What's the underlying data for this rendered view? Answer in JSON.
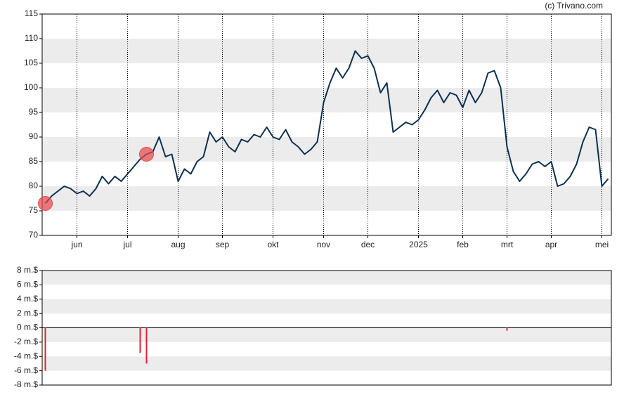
{
  "credit": "(c) Trivano.com",
  "chart_data": [
    {
      "type": "line",
      "categories": [
        null,
        null,
        null,
        null,
        null,
        "jun",
        null,
        null,
        null,
        null,
        null,
        null,
        null,
        "jul",
        null,
        null,
        null,
        null,
        null,
        null,
        null,
        "aug",
        null,
        null,
        null,
        null,
        null,
        null,
        "sep",
        null,
        null,
        null,
        null,
        null,
        null,
        null,
        "okt",
        null,
        null,
        null,
        null,
        null,
        null,
        null,
        "nov",
        null,
        null,
        null,
        null,
        null,
        null,
        "dec",
        null,
        null,
        null,
        null,
        null,
        null,
        null,
        "2025",
        null,
        null,
        null,
        null,
        null,
        null,
        "feb",
        null,
        null,
        null,
        null,
        null,
        null,
        "mrt",
        null,
        null,
        null,
        null,
        null,
        null,
        "apr",
        null,
        null,
        null,
        null,
        null,
        null,
        null,
        "mei",
        null
      ],
      "series": [
        {
          "color": "#0d3050",
          "values": [
            76.5,
            78,
            79,
            80,
            79.5,
            78.5,
            79,
            78,
            79.5,
            82,
            80.5,
            82,
            81,
            82.5,
            84,
            85.5,
            86.5,
            87,
            90,
            86,
            86.5,
            81,
            83.5,
            82.5,
            85,
            86,
            91,
            89,
            90,
            88,
            87,
            89.5,
            89,
            90.5,
            90,
            92,
            90,
            89.5,
            91.5,
            89,
            88,
            86.5,
            87.5,
            89,
            97,
            101,
            104,
            102,
            104,
            107.5,
            106,
            106.5,
            104,
            99,
            101,
            91,
            92,
            93,
            92.5,
            93.5,
            95.5,
            98,
            99.5,
            97,
            99,
            98.5,
            96,
            99.5,
            97,
            99,
            103,
            103.5,
            100,
            88,
            83,
            81,
            82.5,
            84.5,
            85,
            84,
            85,
            80,
            80.5,
            82,
            84.5,
            89,
            92,
            91.5,
            80,
            81.5
          ]
        },
        {
          "color": "#e8464a",
          "style": "marker",
          "values": [
            76.5,
            null,
            null,
            null,
            null,
            null,
            null,
            null,
            null,
            null,
            null,
            null,
            null,
            null,
            null,
            null,
            86.5,
            null,
            null,
            null,
            null,
            null,
            null,
            null,
            null,
            null,
            null,
            null,
            null,
            null,
            null,
            null,
            null,
            null,
            null,
            null,
            null,
            null,
            null,
            null,
            null,
            null,
            null,
            null,
            null,
            null,
            null,
            null,
            null,
            null,
            null,
            null,
            null,
            null,
            null,
            null,
            null,
            null,
            null,
            null,
            null,
            null,
            null,
            null,
            null,
            null,
            null,
            null,
            null,
            null,
            null,
            null,
            null,
            null,
            null,
            null,
            null,
            null,
            null,
            null,
            null,
            null,
            null,
            null,
            null,
            null,
            null,
            null,
            null,
            null
          ]
        }
      ],
      "ylim": [
        70,
        115
      ],
      "yticks": [
        70,
        75,
        80,
        85,
        90,
        95,
        100,
        105,
        110,
        115
      ],
      "grid": true
    },
    {
      "type": "bar",
      "color": "#e0232a",
      "values": [
        -6,
        null,
        null,
        null,
        null,
        null,
        null,
        null,
        null,
        null,
        null,
        null,
        null,
        null,
        null,
        -3.5,
        -5,
        null,
        null,
        null,
        null,
        null,
        null,
        null,
        null,
        null,
        null,
        null,
        null,
        null,
        null,
        null,
        null,
        null,
        null,
        null,
        null,
        null,
        null,
        null,
        null,
        null,
        null,
        null,
        null,
        null,
        null,
        null,
        null,
        null,
        null,
        null,
        null,
        null,
        null,
        null,
        null,
        null,
        null,
        null,
        null,
        null,
        null,
        null,
        null,
        null,
        null,
        null,
        null,
        null,
        null,
        null,
        null,
        -0.4,
        null,
        null,
        null,
        null,
        null,
        null,
        null,
        null,
        null,
        null,
        null,
        null,
        null,
        null,
        null,
        null
      ],
      "ylim": [
        -8,
        8
      ],
      "yticks": [
        {
          "value": -8,
          "label": "-8 m.$"
        },
        {
          "value": -6,
          "label": "-6 m.$"
        },
        {
          "value": -4,
          "label": "-4 m.$"
        },
        {
          "value": -2,
          "label": "-2 m.$"
        },
        {
          "value": 0,
          "label": "0 m.$"
        },
        {
          "value": 2,
          "label": "2 m.$"
        },
        {
          "value": 4,
          "label": "4 m.$"
        },
        {
          "value": 6,
          "label": "6 m.$"
        },
        {
          "value": 8,
          "label": "8 m.$"
        }
      ],
      "grid": true
    }
  ]
}
